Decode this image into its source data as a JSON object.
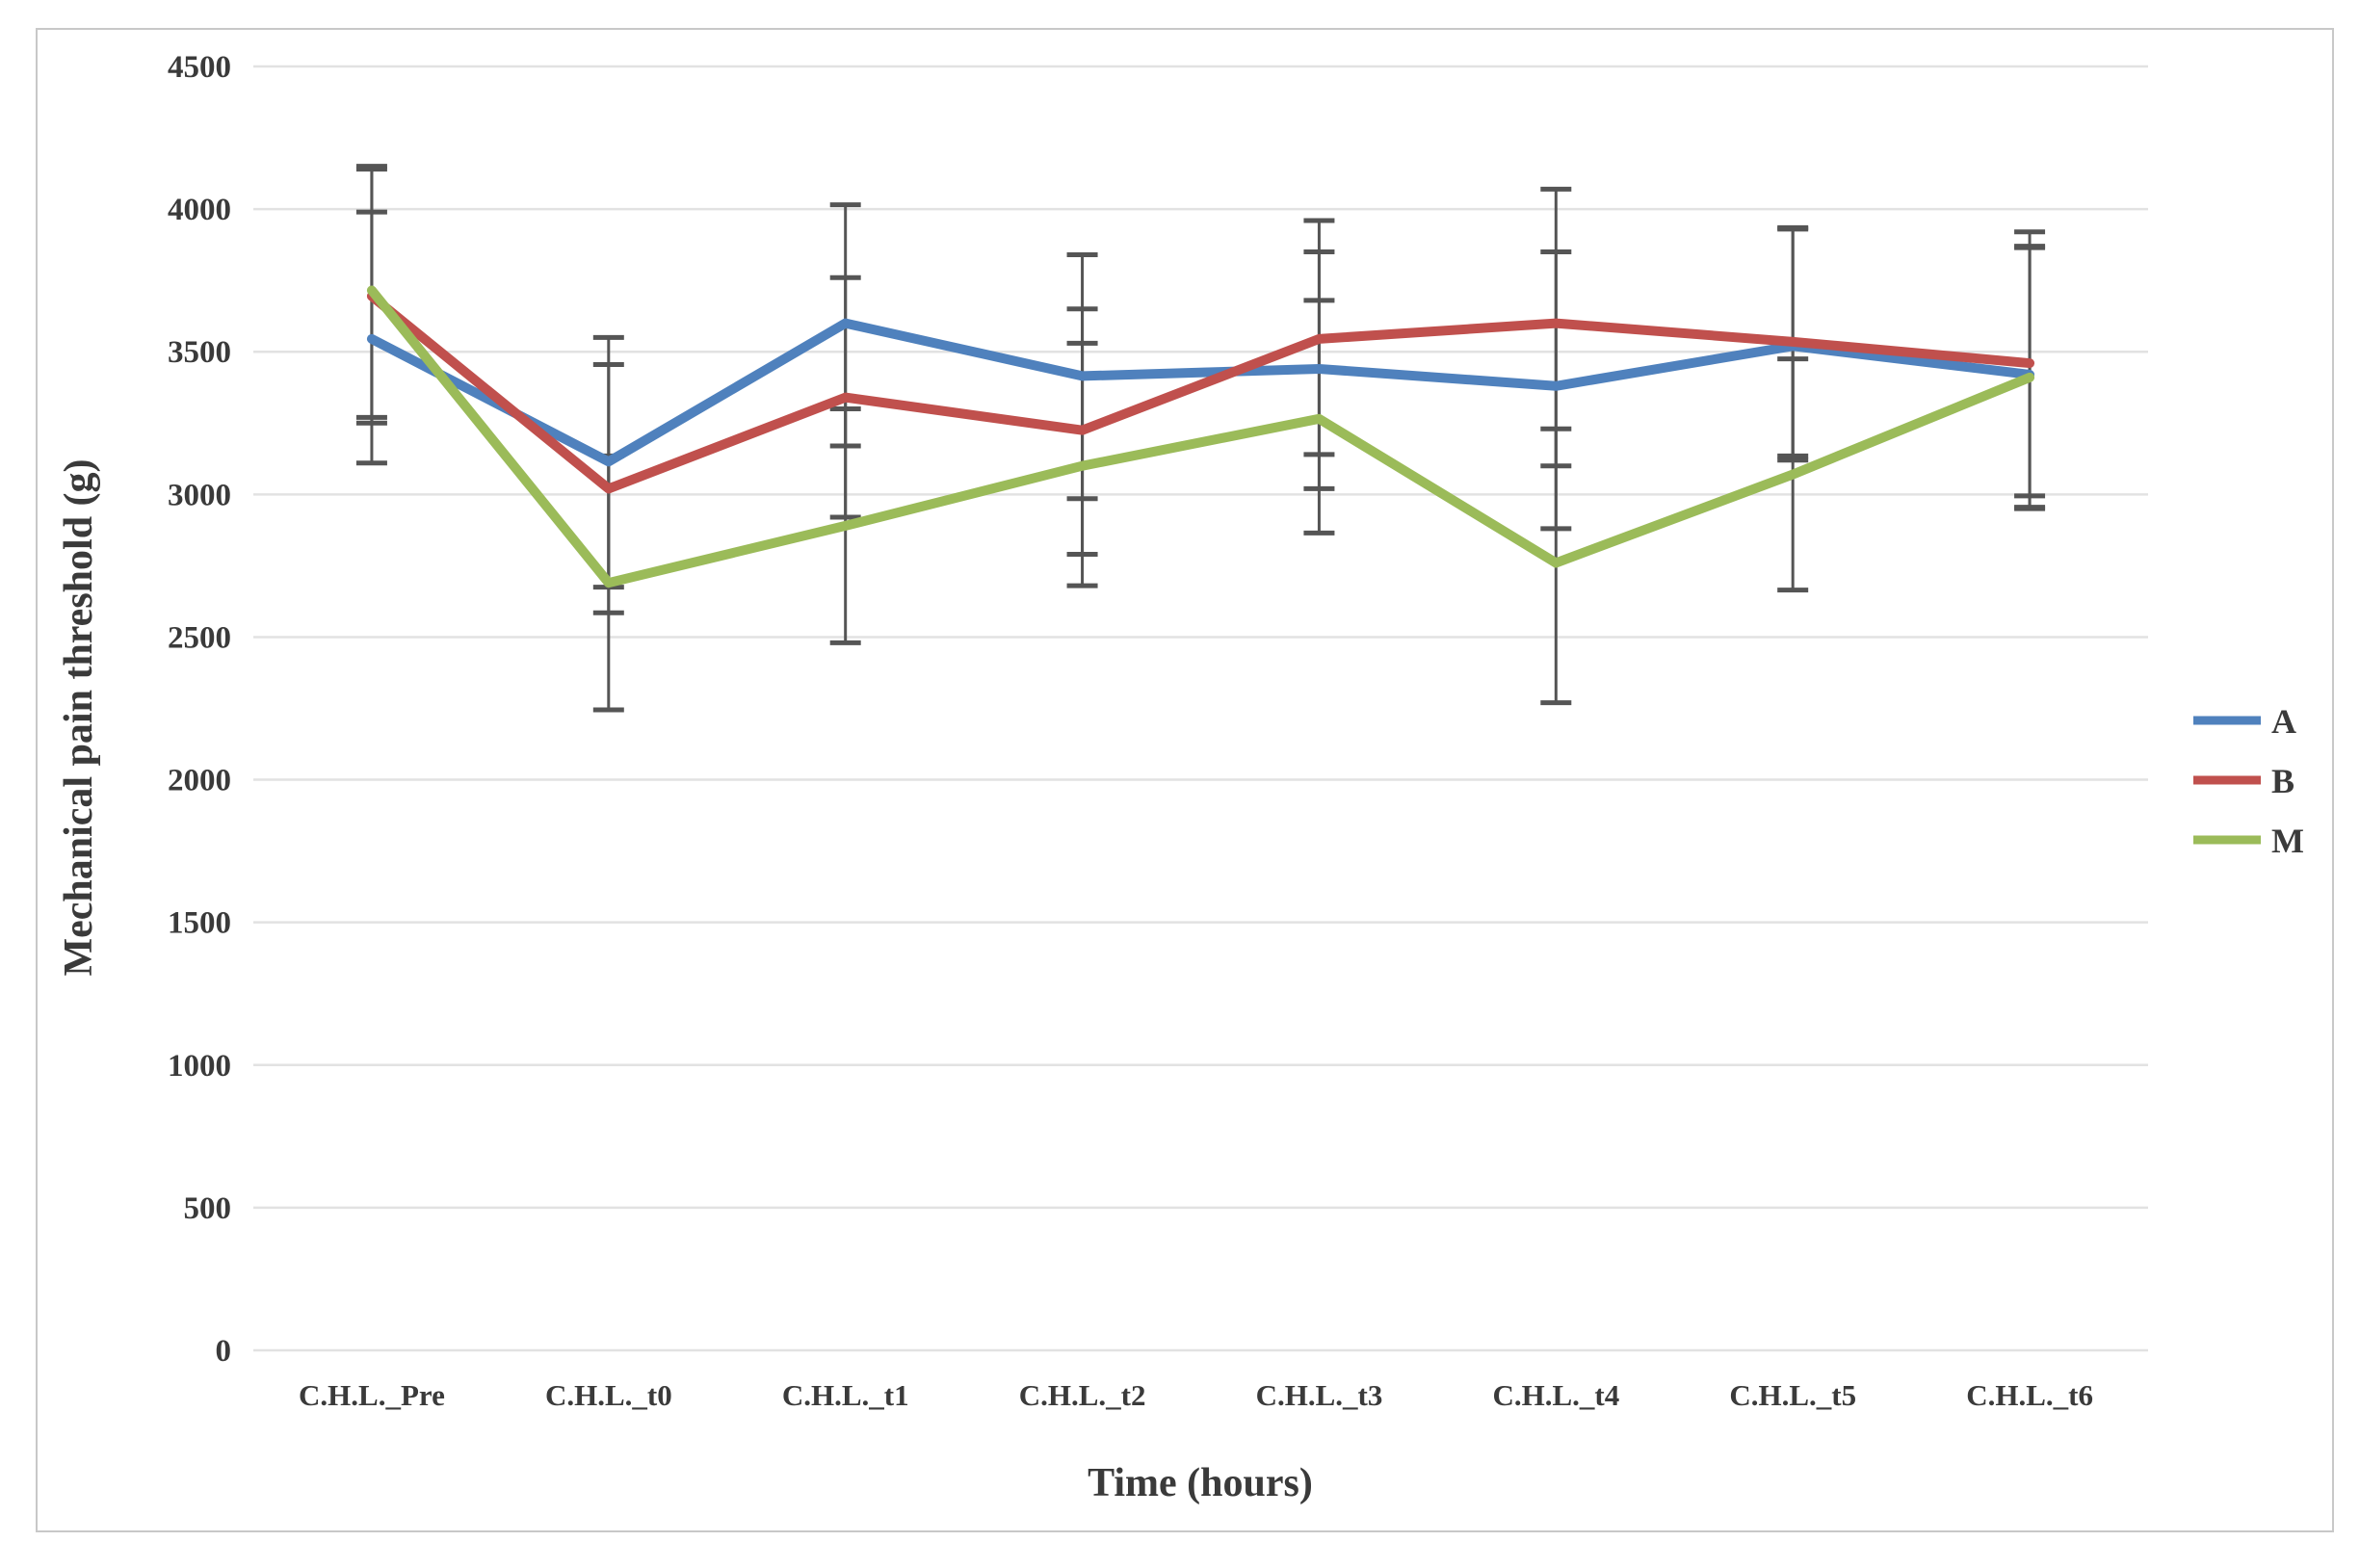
{
  "chart_data": {
    "type": "line",
    "title": "",
    "xlabel": "Time (hours)",
    "ylabel": "Mechanical pain threshold (g)",
    "categories": [
      "C.H.L._Pre",
      "C.H.L._t0",
      "C.H.L._t1",
      "C.H.L._t2",
      "C.H.L._t3",
      "C.H.L._t4",
      "C.H.L._t5",
      "C.H.L._t6"
    ],
    "series": [
      {
        "name": "A",
        "color": "#4F81BD",
        "values": [
          3545,
          3115,
          3600,
          3415,
          3440,
          3380,
          3520,
          3420
        ],
        "err_low": [
          3110,
          2675,
          3170,
          2985,
          3020,
          2880,
          3120,
          2950
        ],
        "err_high": [
          3990,
          3550,
          4015,
          3840,
          3850,
          3850,
          3930,
          3870
        ]
      },
      {
        "name": "B",
        "color": "#C0504D",
        "values": [
          3695,
          3020,
          3340,
          3225,
          3545,
          3600,
          3535,
          3460
        ],
        "err_low": [
          3250,
          2585,
          2920,
          2790,
          3140,
          3100,
          3135,
          2995
        ],
        "err_high": [
          4140,
          3455,
          3760,
          3650,
          3960,
          4070,
          3935,
          3920
        ]
      },
      {
        "name": "M",
        "color": "#9BBB59",
        "values": [
          3715,
          2690,
          2890,
          3100,
          3265,
          2760,
          3070,
          3410
        ],
        "err_low": [
          3270,
          2245,
          2480,
          2680,
          2865,
          2270,
          2665,
          2955
        ],
        "err_high": [
          4150,
          3135,
          3300,
          3530,
          3680,
          3230,
          3475,
          3865
        ]
      }
    ],
    "ylim": [
      0,
      4500
    ],
    "y_ticks": [
      0,
      500,
      1000,
      1500,
      2000,
      2500,
      3000,
      3500,
      4000,
      4500
    ],
    "grid": "horizontal",
    "legend_position": "right",
    "colors": {
      "gridline": "#e2e2e2",
      "error_bar": "#555555",
      "text": "#3a3a3a",
      "border": "#c8c8c8",
      "background": "#ffffff"
    }
  }
}
